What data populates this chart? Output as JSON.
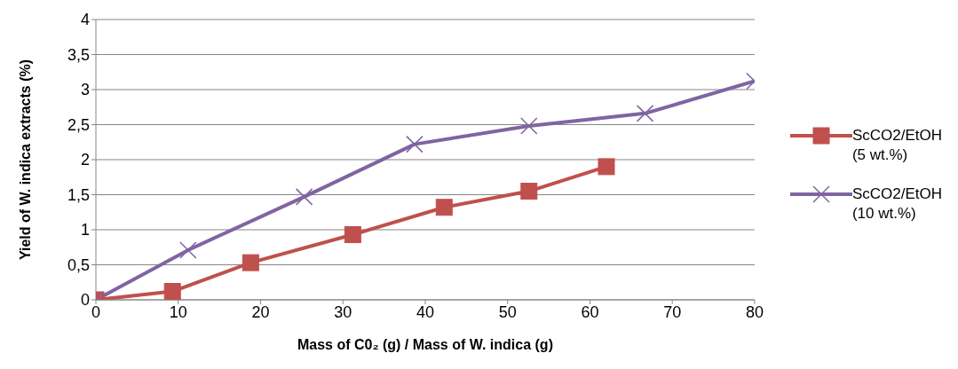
{
  "chart_data": {
    "type": "line",
    "xlabel": "Mass of C0₂ (g) / Mass of W. indica (g)",
    "ylabel": "Yield of W. indica extracts  (%)",
    "xlim": [
      0,
      80
    ],
    "xticks": [
      0,
      10,
      20,
      30,
      40,
      50,
      60,
      70,
      80
    ],
    "ylim": [
      0,
      4
    ],
    "yticks": [
      0,
      {
        "value": 0.5,
        "label": "0,5"
      },
      1,
      {
        "value": 1.5,
        "label": "1,5"
      },
      2,
      {
        "value": 2.5,
        "label": "2,5"
      },
      3,
      {
        "value": 3.5,
        "label": "3,5"
      },
      4
    ],
    "grid": "y",
    "legend": "right",
    "line_style": "solid",
    "series": [
      {
        "name": "ScCO2/EtOH (5 wt.%)",
        "color": "#c0504d",
        "marker": "square",
        "x": [
          0,
          9.3,
          18.8,
          31.2,
          42.3,
          52.6,
          62.0
        ],
        "values": [
          0,
          0.12,
          0.53,
          0.93,
          1.32,
          1.55,
          1.9
        ]
      },
      {
        "name": "ScCO2/EtOH (10 wt.%)",
        "color": "#8064a2",
        "marker": "cross",
        "x": [
          0,
          11.2,
          25.3,
          38.7,
          52.6,
          66.7,
          80
        ],
        "values": [
          0,
          0.71,
          1.47,
          2.22,
          2.48,
          2.66,
          3.12
        ]
      }
    ]
  }
}
